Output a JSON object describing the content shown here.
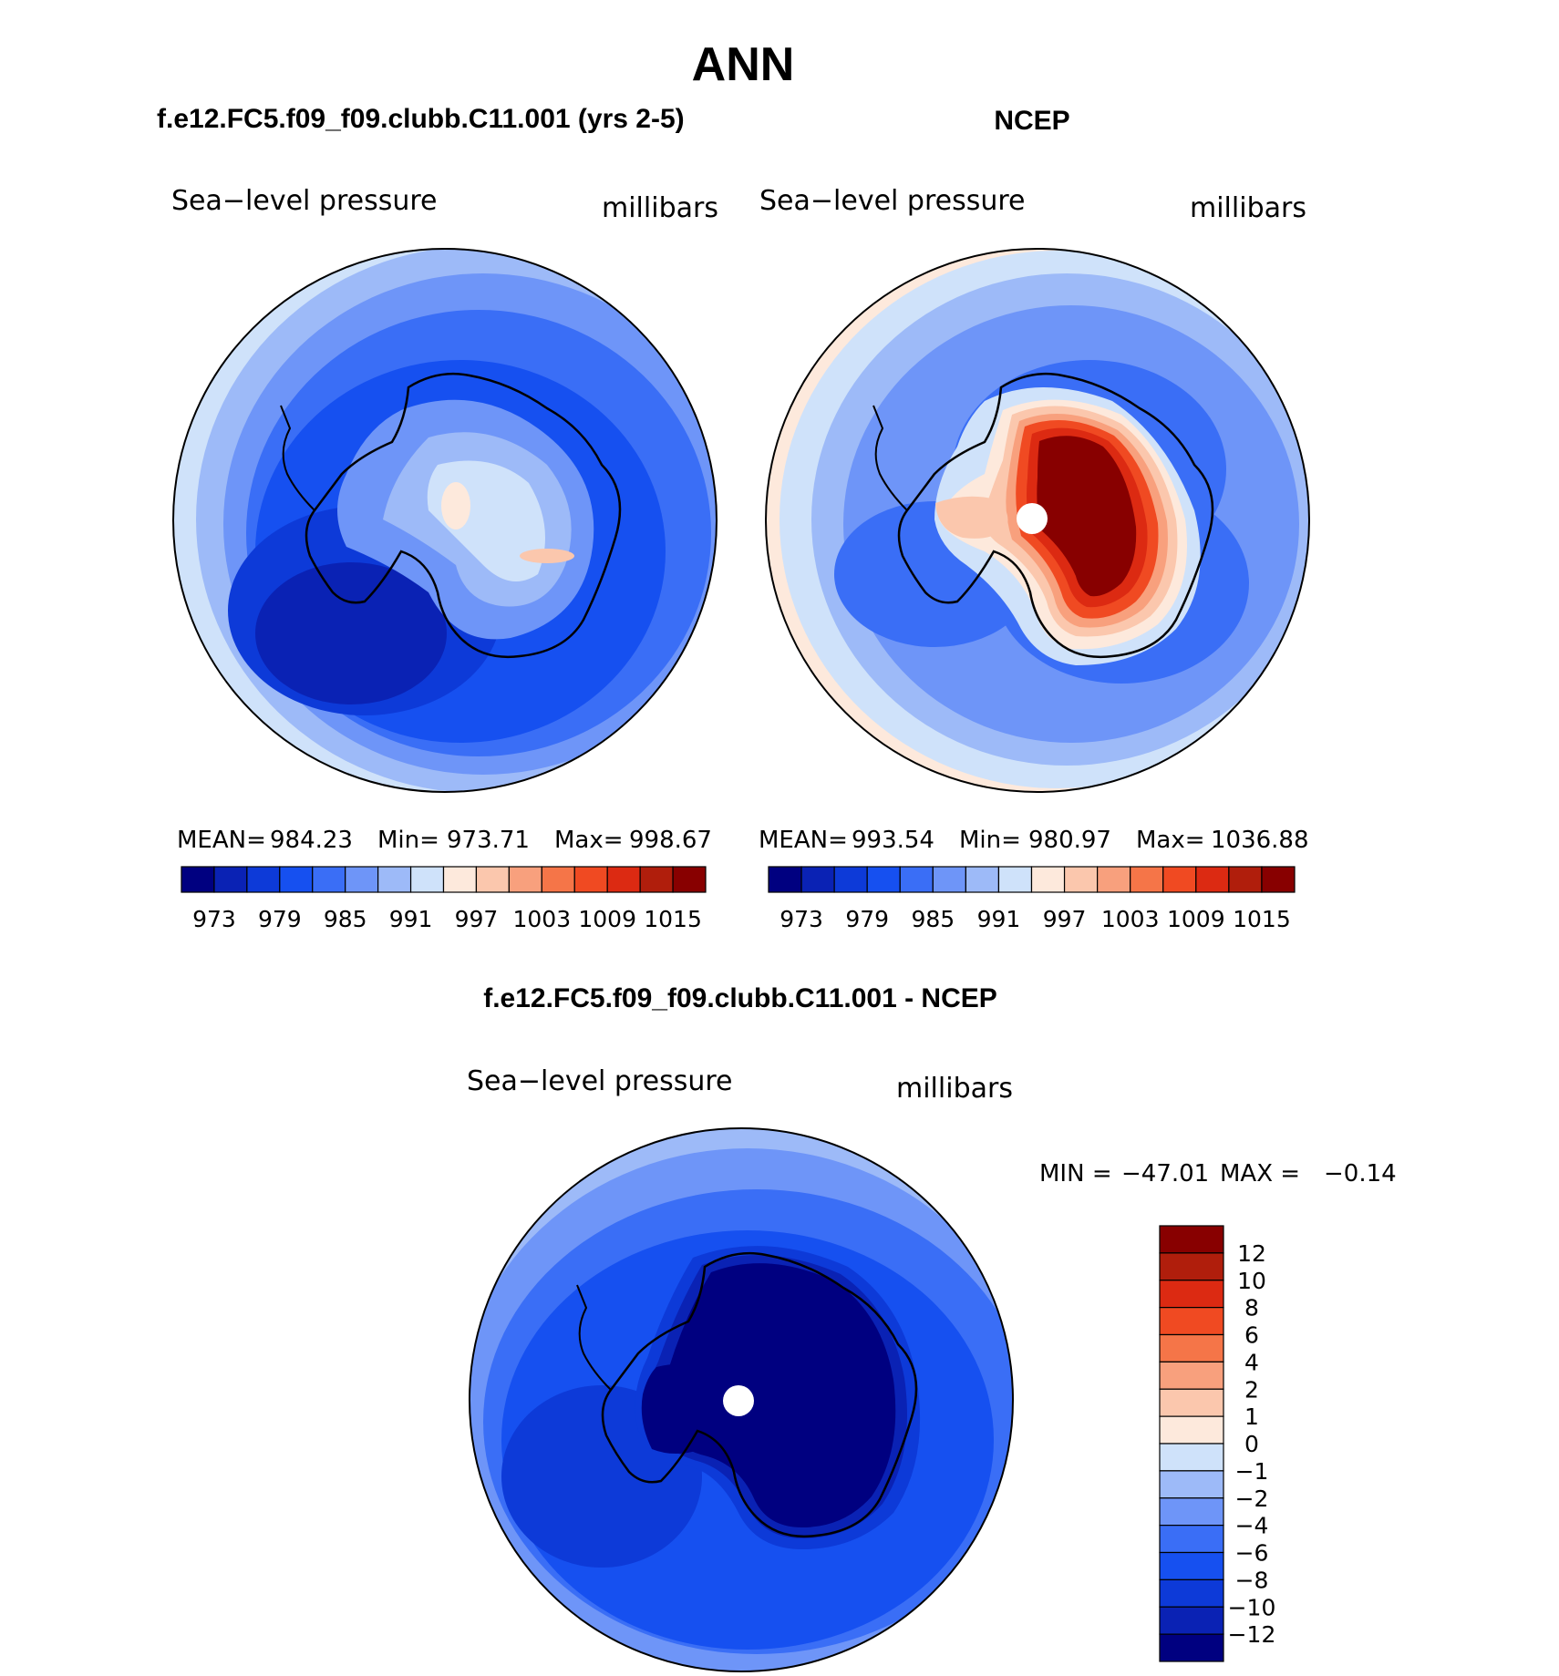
{
  "page_title": "ANN",
  "chart_data": [
    {
      "type": "heatmap",
      "projection": "south-polar-stereographic",
      "title": "f.e12.FC5.f09_f09.clubb.C11.001 (yrs 2-5)",
      "variable": "Sea−level pressure",
      "units": "millibars",
      "stats": {
        "mean_label": "MEAN=",
        "mean": "984.23",
        "min_label": "Min=",
        "min": "973.71",
        "max_label": "Max=",
        "max": "998.67"
      },
      "levels": [
        "973",
        "979",
        "985",
        "991",
        "997",
        "1003",
        "1009",
        "1015"
      ],
      "colorbar": [
        "#000080",
        "#0a22b4",
        "#0d3ad8",
        "#1650f0",
        "#3a6ef6",
        "#6e95f8",
        "#9dbaf8",
        "#cfe2fa",
        "#fde9dc",
        "#fbc7ad",
        "#f8a07d",
        "#f57548",
        "#f04a22",
        "#dc2a12",
        "#b01e0c",
        "#880000"
      ],
      "field_levels_shown": [
        "#cfe2fa",
        "#9dbaf8",
        "#6e95f8",
        "#3a6ef6",
        "#1650f0",
        "#0d3ad8",
        "#0a22b4",
        "#fde9dc"
      ]
    },
    {
      "type": "heatmap",
      "projection": "south-polar-stereographic",
      "title": "NCEP",
      "variable": "Sea−level pressure",
      "units": "millibars",
      "stats": {
        "mean_label": "MEAN=",
        "mean": "993.54",
        "min_label": "Min=",
        "min": "980.97",
        "max_label": "Max=",
        "max": "1036.88"
      },
      "levels": [
        "973",
        "979",
        "985",
        "991",
        "997",
        "1003",
        "1009",
        "1015"
      ],
      "colorbar": [
        "#000080",
        "#0a22b4",
        "#0d3ad8",
        "#1650f0",
        "#3a6ef6",
        "#6e95f8",
        "#9dbaf8",
        "#cfe2fa",
        "#fde9dc",
        "#fbc7ad",
        "#f8a07d",
        "#f57548",
        "#f04a22",
        "#dc2a12",
        "#b01e0c",
        "#880000"
      ]
    },
    {
      "type": "heatmap",
      "projection": "south-polar-stereographic",
      "title": "f.e12.FC5.f09_f09.clubb.C11.001 - NCEP",
      "variable": "Sea−level pressure",
      "units": "millibars",
      "stats": {
        "min_label": "MIN =",
        "min": "−47.01",
        "max_label": "MAX =",
        "max": "−0.14"
      },
      "levels": [
        "12",
        "10",
        "8",
        "6",
        "4",
        "2",
        "1",
        "0",
        "−1",
        "−2",
        "−4",
        "−6",
        "−8",
        "−10",
        "−12"
      ],
      "colorbar": [
        "#880000",
        "#b01e0c",
        "#dc2a12",
        "#f04a22",
        "#f57548",
        "#f8a07d",
        "#fbc7ad",
        "#fde9dc",
        "#cfe2fa",
        "#9dbaf8",
        "#6e95f8",
        "#3a6ef6",
        "#1650f0",
        "#0d3ad8",
        "#0a22b4",
        "#000080"
      ]
    }
  ]
}
